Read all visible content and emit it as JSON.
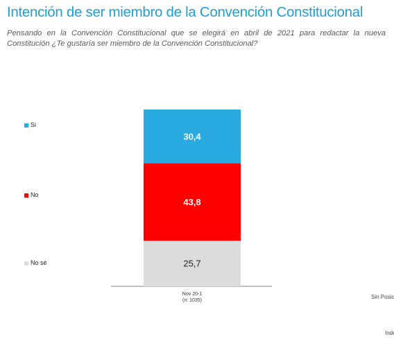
{
  "header": {
    "title": "Intención de ser miembro de la Convención Constitucional",
    "subtitle": "Pensando en la Convención Constitucional que se elegirá en abril de 2021 para redactar la nueva Constitución ¿Te gustaría ser miembro de la Convención Constitucional?"
  },
  "chart_data": {
    "type": "bar",
    "stacked": true,
    "title": "Intención de ser miembro de la Convención Constitucional",
    "categories": [
      "Nov 20-1"
    ],
    "category_sublabels": [
      "(n: 1035)"
    ],
    "series": [
      {
        "name": "Si",
        "values": [
          30.4
        ],
        "labels": [
          "30,4"
        ],
        "color": "#29abe2",
        "label_color": "#ffffff"
      },
      {
        "name": "No",
        "values": [
          43.8
        ],
        "labels": [
          "43,8"
        ],
        "color": "#ff0000",
        "label_color": "#ffffff"
      },
      {
        "name": "No sé",
        "values": [
          25.7
        ],
        "labels": [
          "25,7"
        ],
        "color": "#dcdcdc",
        "label_color": "#222222"
      }
    ],
    "ylim": [
      0,
      100
    ],
    "grid": false,
    "legend_position": "left"
  },
  "side_texts": {
    "sin_posicion": "Sin Posic",
    "inde": "Inde"
  }
}
